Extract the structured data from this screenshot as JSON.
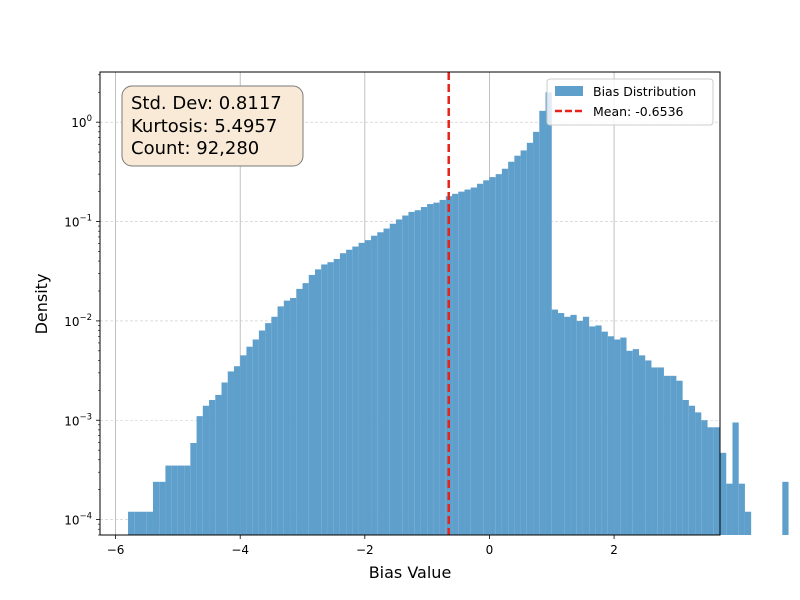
{
  "chart_data": {
    "type": "bar",
    "subtype": "histogram",
    "title": "",
    "xlabel": "Bias Value",
    "ylabel": "Density",
    "yscale": "log",
    "xlim": [
      -6.25,
      3.7
    ],
    "ylim": [
      7e-05,
      3.2
    ],
    "x_ticks": [
      {
        "value": -6,
        "label": "−6"
      },
      {
        "value": -4,
        "label": "−4"
      },
      {
        "value": -2,
        "label": "−2"
      },
      {
        "value": 0,
        "label": "0"
      },
      {
        "value": 2,
        "label": "2"
      }
    ],
    "y_ticks": [
      {
        "value": 0.0001,
        "base": "10",
        "exp": "−4"
      },
      {
        "value": 0.001,
        "base": "10",
        "exp": "−3"
      },
      {
        "value": 0.01,
        "base": "10",
        "exp": "−2"
      },
      {
        "value": 0.1,
        "base": "10",
        "exp": "−1"
      },
      {
        "value": 1,
        "base": "10",
        "exp": "0"
      }
    ],
    "grid": {
      "x": true,
      "y": true,
      "y_style": "dashed"
    },
    "bin_start": -5.8,
    "bin_width": 0.1,
    "series": [
      {
        "name": "Bias Distribution",
        "color": "#5f9fcc",
        "values": [
          0.00012,
          0.00012,
          0.00012,
          0.00012,
          0.00024,
          0.00024,
          0.00035,
          0.00035,
          0.00035,
          0.00035,
          0.00059,
          0.0011,
          0.0014,
          0.0016,
          0.0018,
          0.0024,
          0.0031,
          0.0035,
          0.0045,
          0.0055,
          0.0065,
          0.008,
          0.0095,
          0.011,
          0.014,
          0.016,
          0.017,
          0.021,
          0.024,
          0.029,
          0.033,
          0.037,
          0.039,
          0.042,
          0.048,
          0.052,
          0.056,
          0.061,
          0.065,
          0.072,
          0.078,
          0.085,
          0.095,
          0.105,
          0.115,
          0.125,
          0.13,
          0.14,
          0.15,
          0.155,
          0.165,
          0.18,
          0.19,
          0.2,
          0.21,
          0.22,
          0.24,
          0.26,
          0.28,
          0.3,
          0.34,
          0.4,
          0.46,
          0.52,
          0.62,
          0.8,
          1.3,
          2.0,
          0.013,
          0.012,
          0.011,
          0.0115,
          0.01,
          0.011,
          0.0088,
          0.009,
          0.0078,
          0.007,
          0.0065,
          0.0068,
          0.005,
          0.0052,
          0.0045,
          0.004,
          0.0034,
          0.0034,
          0.0028,
          0.0028,
          0.0025,
          0.0016,
          0.0014,
          0.0012,
          0.001,
          0.00085,
          0.00085,
          0.00047,
          0.00023,
          0.00095,
          0.00023,
          0.00012,
          0,
          0,
          0,
          0,
          0,
          0.00024
        ]
      }
    ],
    "mean_line": {
      "value": -0.6536,
      "label": "Mean: -0.6536",
      "color": "#e8231c",
      "style": "dashed"
    },
    "legend": {
      "placement": "top-right"
    },
    "stats_box": {
      "lines": [
        "Std. Dev: 0.8117",
        "Kurtosis: 5.4957",
        "Count: 92,280"
      ],
      "background": "#f8ead6",
      "border": "#7a7a7a"
    }
  }
}
